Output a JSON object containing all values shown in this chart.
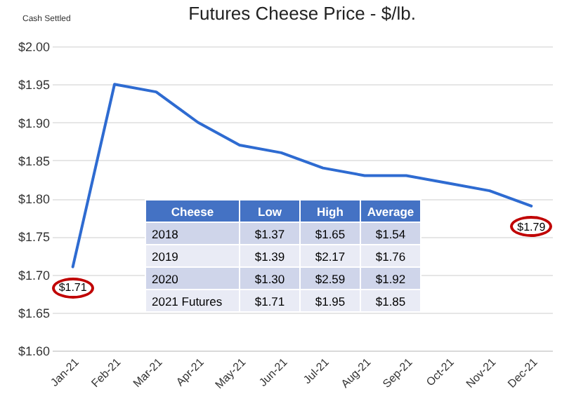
{
  "chart_data": {
    "type": "line",
    "title": "Futures Cheese Price - $/lb.",
    "categories": [
      "Jan-21",
      "Feb-21",
      "Mar-21",
      "Apr-21",
      "May-21",
      "Jun-21",
      "Jul-21",
      "Aug-21",
      "Sep-21",
      "Oct-21",
      "Nov-21",
      "Dec-21"
    ],
    "series": [
      {
        "color": "#2e6bd1",
        "values": [
          1.71,
          1.95,
          1.94,
          1.9,
          1.87,
          1.86,
          1.84,
          1.83,
          1.83,
          1.82,
          1.81,
          1.79
        ]
      }
    ],
    "ylim": [
      1.6,
      2.0
    ],
    "yticks": [
      {
        "value": 1.6,
        "label": "$1.60"
      },
      {
        "value": 1.65,
        "label": "$1.65"
      },
      {
        "value": 1.7,
        "label": "$1.70"
      },
      {
        "value": 1.75,
        "label": "$1.75"
      },
      {
        "value": 1.8,
        "label": "$1.80"
      },
      {
        "value": 1.85,
        "label": "$1.85"
      },
      {
        "value": 1.9,
        "label": "$1.90"
      },
      {
        "value": 1.95,
        "label": "$1.95"
      },
      {
        "value": 2.0,
        "label": "$2.00"
      }
    ],
    "grid": "y",
    "marker": "none",
    "line_style": "solid",
    "legend": false,
    "annotations": [
      "Cash Settled",
      {
        "text": "$1.71",
        "x": "Jan-21",
        "y": 1.71
      },
      {
        "text": "$1.79",
        "x": "Dec-21",
        "y": 1.79
      },
      "Cheese",
      "Low",
      "High",
      "Average",
      "2018",
      "$1.37",
      "$1.65",
      "$1.54",
      "2019",
      "$1.39",
      "$2.17",
      "$1.76",
      "2020",
      "$1.30",
      "$2.59",
      "$1.92",
      "2021 Futures",
      "$1.71",
      "$1.95",
      "$1.85"
    ]
  }
}
